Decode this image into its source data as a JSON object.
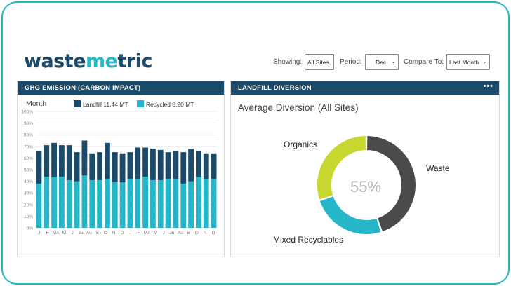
{
  "brand": {
    "logo_prefix": "waste",
    "logo_accent": "me",
    "logo_suffix": "tric"
  },
  "filters": {
    "showing_label": "Showing:",
    "showing_value": "All Sites",
    "period_label": "Period:",
    "period_value": "Dec",
    "compare_label": "Compare To:",
    "compare_value": "Last Month"
  },
  "ghg_panel": {
    "title": "GHG EMISSION (CARBON IMPACT)",
    "legend_axis": "Month",
    "landfill_label": "Landfill 11.44 MT",
    "recycled_label": "Recycled 8.20 MT"
  },
  "diversion_panel": {
    "title": "LANDFILL DIVERSION",
    "menu_icon": "more-dots-icon",
    "subtitle": "Average Diversion (All Sites)",
    "center_value": "55%",
    "labels": {
      "organics": "Organics",
      "waste": "Waste",
      "mixed": "Mixed Recyclables"
    }
  },
  "colors": {
    "navy": "#1b4a6b",
    "teal": "#25b7c8",
    "lime": "#c6d72f",
    "gray": "#4a4a4a"
  },
  "chart_data": [
    {
      "type": "bar",
      "stacked": true,
      "categories": [
        "J",
        "F",
        "M",
        "A",
        "M",
        "J",
        "Ju",
        "Au",
        "S",
        "O",
        "N",
        "D",
        "J",
        "F",
        "M",
        "A",
        "M",
        "J",
        "Ju",
        "Au",
        "S",
        "O",
        "N",
        "D"
      ],
      "xtick_labels": [
        "J",
        "F",
        "MA",
        "M",
        "J",
        "Ju",
        "Au",
        "S",
        "O",
        "N",
        "D",
        "J",
        "F",
        "MA",
        "M",
        "J",
        "Ju",
        "Au",
        "S",
        "O",
        "N",
        "D"
      ],
      "series": [
        {
          "name": "Recycled",
          "color": "#25b7c8",
          "values": [
            38,
            44,
            44,
            44,
            41,
            40,
            45,
            41,
            41,
            42,
            39,
            39,
            42,
            42,
            44,
            41,
            41,
            42,
            42,
            38,
            40,
            44,
            42,
            42
          ]
        },
        {
          "name": "Landfill",
          "color": "#1b4a6b",
          "values": [
            28,
            27,
            29,
            27,
            30,
            25,
            30,
            23,
            24,
            31,
            26,
            25,
            23,
            27,
            25,
            27,
            26,
            23,
            24,
            27,
            28,
            22,
            22,
            22
          ]
        }
      ],
      "ylim": [
        0,
        100
      ],
      "yticks": [
        "0%",
        "10%",
        "20%",
        "30%",
        "40%",
        "50%",
        "60%",
        "70%",
        "80%",
        "90%",
        "100%"
      ],
      "grid": true,
      "legend": "top"
    },
    {
      "type": "pie",
      "donut": true,
      "categories": [
        "Waste",
        "Mixed Recyclables",
        "Organics"
      ],
      "values": [
        45,
        25,
        30
      ],
      "colors": [
        "#4a4a4a",
        "#25b7c8",
        "#c6d72f"
      ],
      "center_label": "55%"
    }
  ]
}
